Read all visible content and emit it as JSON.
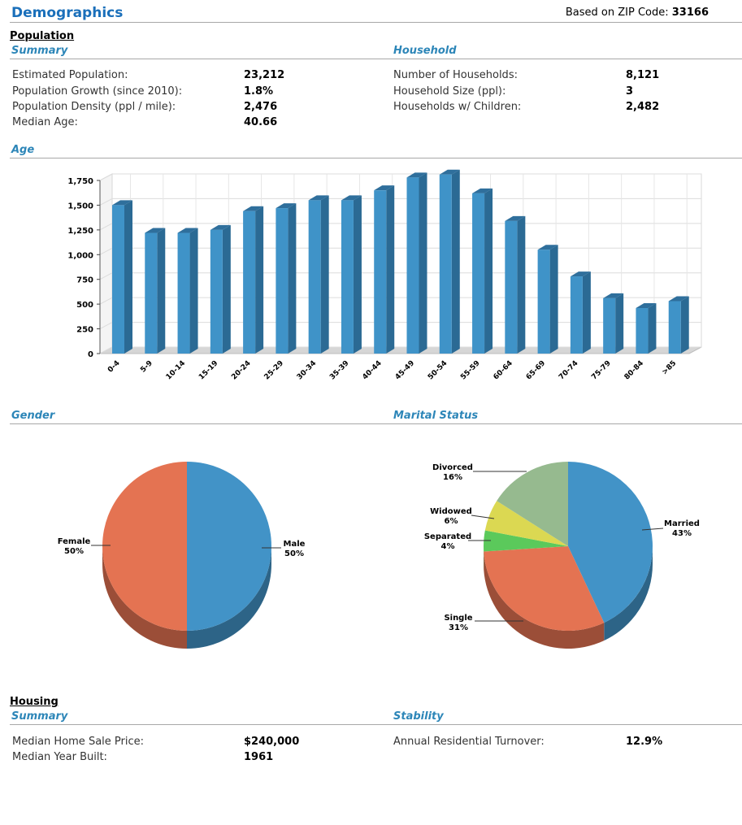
{
  "header": {
    "title": "Demographics",
    "zip_label": "Based on ZIP Code:",
    "zip_value": "33166"
  },
  "population": {
    "heading": "Population",
    "summary_heading": "Summary",
    "household_heading": "Household",
    "summary": [
      {
        "label": "Estimated Population:",
        "value": "23,212"
      },
      {
        "label": "Population Growth (since 2010):",
        "value": "1.8%"
      },
      {
        "label": "Population Density (ppl / mile):",
        "value": "2,476"
      },
      {
        "label": "Median Age:",
        "value": "40.66"
      }
    ],
    "household": [
      {
        "label": "Number of Households:",
        "value": "8,121"
      },
      {
        "label": "Household Size (ppl):",
        "value": "3"
      },
      {
        "label": "Households w/ Children:",
        "value": "2,482"
      }
    ]
  },
  "age_heading": "Age",
  "gender_heading": "Gender",
  "marital_heading": "Marital Status",
  "housing": {
    "heading": "Housing",
    "summary_heading": "Summary",
    "stability_heading": "Stability",
    "summary": [
      {
        "label": "Median Home Sale Price:",
        "value": "$240,000"
      },
      {
        "label": "Median Year Built:",
        "value": "1961"
      }
    ],
    "stability": [
      {
        "label": "Annual Residential Turnover:",
        "value": "12.9%"
      }
    ]
  },
  "colors": {
    "title": "#1a6fba",
    "section": "#2d86b8",
    "bar": "#3f93c8",
    "bar_side": "#2b6a94",
    "bar_top": "#2f6f9c",
    "male": "#4293c7",
    "female": "#e47352",
    "married": "#4293c7",
    "single": "#e47352",
    "separated": "#5bc95b",
    "widowed": "#dbd852",
    "divorced": "#96ba8f"
  },
  "chart_data": [
    {
      "type": "bar",
      "categories": [
        "0-4",
        "5-9",
        "10-14",
        "15-19",
        "20-24",
        "25-29",
        "30-34",
        "35-39",
        "40-44",
        "45-49",
        "50-54",
        "55-59",
        "60-64",
        "65-69",
        "70-74",
        "75-79",
        "80-84",
        ">85"
      ],
      "values": [
        1500,
        1220,
        1220,
        1250,
        1440,
        1470,
        1550,
        1550,
        1650,
        1780,
        1810,
        1620,
        1340,
        1050,
        780,
        560,
        460,
        530
      ],
      "y_ticks": [
        "0",
        "250",
        "500",
        "750",
        "1,000",
        "1,250",
        "1,500",
        "1,750"
      ],
      "ylim": [
        0,
        1750
      ],
      "grid": true
    },
    {
      "type": "pie",
      "slices": [
        {
          "label": "Male",
          "pct_label": "50%",
          "value": 50
        },
        {
          "label": "Female",
          "pct_label": "50%",
          "value": 50
        }
      ]
    },
    {
      "type": "pie",
      "slices": [
        {
          "label": "Married",
          "pct_label": "43%",
          "value": 43
        },
        {
          "label": "Single",
          "pct_label": "31%",
          "value": 31
        },
        {
          "label": "Separated",
          "pct_label": "4%",
          "value": 4
        },
        {
          "label": "Widowed",
          "pct_label": "6%",
          "value": 6
        },
        {
          "label": "Divorced",
          "pct_label": "16%",
          "value": 16
        }
      ]
    }
  ]
}
